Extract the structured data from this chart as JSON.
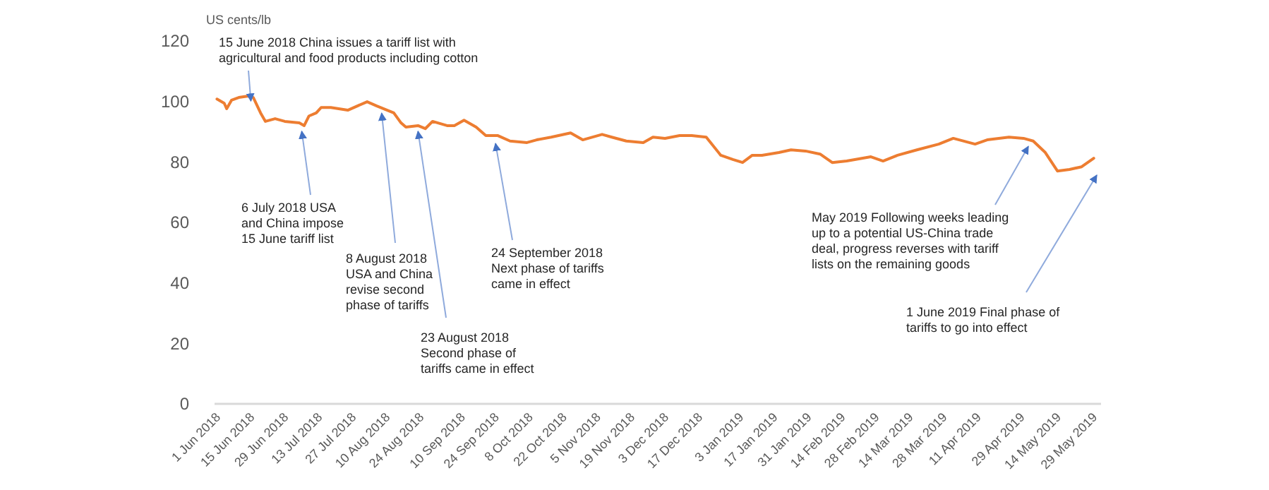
{
  "chart_data": {
    "type": "line",
    "ylabel": "US cents/lb",
    "x": [
      "2018-06-01",
      "2018-06-04",
      "2018-06-05",
      "2018-06-07",
      "2018-06-10",
      "2018-06-14",
      "2018-06-16",
      "2018-06-19",
      "2018-06-21",
      "2018-06-25",
      "2018-06-29",
      "2018-07-05",
      "2018-07-07",
      "2018-07-09",
      "2018-07-12",
      "2018-07-14",
      "2018-07-18",
      "2018-07-25",
      "2018-08-02",
      "2018-08-06",
      "2018-08-13",
      "2018-08-16",
      "2018-08-18",
      "2018-08-23",
      "2018-08-26",
      "2018-08-29",
      "2018-09-04",
      "2018-09-07",
      "2018-09-11",
      "2018-09-16",
      "2018-09-20",
      "2018-09-25",
      "2018-09-30",
      "2018-10-07",
      "2018-10-11",
      "2018-10-17",
      "2018-10-25",
      "2018-10-30",
      "2018-11-07",
      "2018-11-11",
      "2018-11-17",
      "2018-11-24",
      "2018-11-28",
      "2018-12-03",
      "2018-12-09",
      "2018-12-14",
      "2018-12-20",
      "2018-12-26",
      "2018-12-31",
      "2019-01-04",
      "2019-01-08",
      "2019-01-12",
      "2019-01-19",
      "2019-01-24",
      "2019-01-30",
      "2019-02-05",
      "2019-02-10",
      "2019-02-16",
      "2019-02-26",
      "2019-03-03",
      "2019-03-09",
      "2019-03-17",
      "2019-03-26",
      "2019-04-01",
      "2019-04-10",
      "2019-04-15",
      "2019-04-24",
      "2019-04-30",
      "2019-05-04",
      "2019-05-09",
      "2019-05-14",
      "2019-05-19",
      "2019-05-24",
      "2019-05-29"
    ],
    "series": [
      {
        "color": "#ed7d31",
        "values": [
          100.8,
          99.4,
          97.6,
          100.4,
          101.3,
          101.8,
          101.3,
          96.2,
          93.4,
          94.3,
          93.4,
          92.9,
          92,
          95.2,
          96.2,
          98,
          98,
          97.1,
          99.9,
          98.5,
          96.2,
          92.9,
          91.5,
          92,
          91,
          93.4,
          92,
          92,
          93.8,
          91.5,
          88.7,
          88.7,
          86.9,
          86.4,
          87.3,
          88.2,
          89.6,
          87.3,
          89.1,
          88.2,
          86.9,
          86.4,
          88.2,
          87.8,
          88.7,
          88.7,
          88.2,
          82.2,
          80.8,
          79.8,
          82.2,
          82.2,
          83.1,
          84,
          83.6,
          82.6,
          79.8,
          80.3,
          81.7,
          80.3,
          82.2,
          84,
          85.9,
          87.8,
          85.9,
          87.3,
          88.2,
          87.8,
          86.9,
          83.1,
          77,
          77.5,
          78.4,
          81.2
        ]
      }
    ],
    "xlim": [
      "2018-05-31",
      "2019-06-01"
    ],
    "xticks": [
      {
        "value": "2018-06-01",
        "label": "1 Jun 2018"
      },
      {
        "value": "2018-06-15",
        "label": "15 Jun 2018"
      },
      {
        "value": "2018-06-29",
        "label": "29 Jun 2018"
      },
      {
        "value": "2018-07-13",
        "label": "13 Jul 2018"
      },
      {
        "value": "2018-07-27",
        "label": "27 Jul 2018"
      },
      {
        "value": "2018-08-10",
        "label": "10 Aug 2018"
      },
      {
        "value": "2018-08-24",
        "label": "24 Aug 2018"
      },
      {
        "value": "2018-09-10",
        "label": "10 Sep 2018"
      },
      {
        "value": "2018-09-24",
        "label": "24 Sep 2018"
      },
      {
        "value": "2018-10-08",
        "label": "8 Oct 2018"
      },
      {
        "value": "2018-10-22",
        "label": "22 Oct 2018"
      },
      {
        "value": "2018-11-05",
        "label": "5 Nov 2018"
      },
      {
        "value": "2018-11-19",
        "label": "19 Nov 2018"
      },
      {
        "value": "2018-12-03",
        "label": "3 Dec 2018"
      },
      {
        "value": "2018-12-17",
        "label": "17 Dec 2018"
      },
      {
        "value": "2019-01-03",
        "label": "3 Jan 2019"
      },
      {
        "value": "2019-01-17",
        "label": "17 Jan 2019"
      },
      {
        "value": "2019-01-31",
        "label": "31 Jan 2019"
      },
      {
        "value": "2019-02-14",
        "label": "14 Feb 2019"
      },
      {
        "value": "2019-02-28",
        "label": "28 Feb 2019"
      },
      {
        "value": "2019-03-14",
        "label": "14 Mar 2019"
      },
      {
        "value": "2019-03-28",
        "label": "28 Mar 2019"
      },
      {
        "value": "2019-04-11",
        "label": "11 Apr 2019"
      },
      {
        "value": "2019-04-29",
        "label": "29 Apr 2019"
      },
      {
        "value": "2019-05-14",
        "label": "14 May 2019"
      },
      {
        "value": "2019-05-29",
        "label": "29 May 2019"
      }
    ],
    "ylim": [
      0,
      120
    ],
    "yticks": [
      0,
      20,
      40,
      60,
      80,
      100,
      120
    ],
    "grid": false,
    "marker": "none",
    "line_style": "solid",
    "annotations": [
      {
        "text": "15 June 2018 China issues a tariff list with agricultural and food products including cotton",
        "x": "2018-06-15",
        "y": 102
      },
      {
        "text": "6 July 2018 USA and China impose 15 June tariff list",
        "x": "2018-07-06",
        "y": 92
      },
      {
        "text": "8 August 2018 USA and China revise second phase of tariffs",
        "x": "2018-08-08",
        "y": 98
      },
      {
        "text": "23 August 2018 Second phase of tariffs came in effect",
        "x": "2018-08-23",
        "y": 92
      },
      {
        "text": "24 September 2018 Next phase of tariffs came in effect",
        "x": "2018-09-24",
        "y": 88
      },
      {
        "text": "May 2019 Following weeks leading up to a potential US-China trade deal, progress reverses with tariff lists on the remaining goods",
        "x": "2019-05-02",
        "y": 87
      },
      "1 June 2019 Final phase of tariffs to go into effect"
    ]
  }
}
